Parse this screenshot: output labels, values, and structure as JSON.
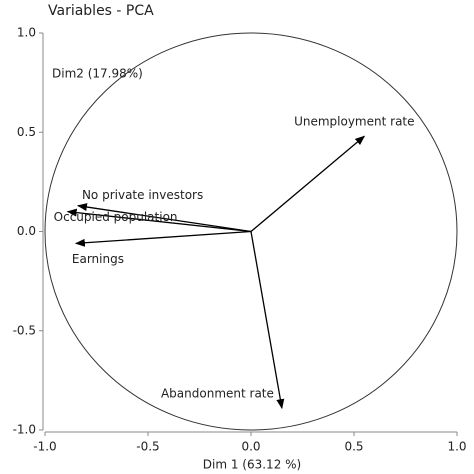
{
  "chart_data": {
    "type": "pca-variables",
    "title": "Variables - PCA",
    "xlabel": "Dim 1 (63.12 %)",
    "ylabel": "Dim2 (17.98%)",
    "color": "#000000",
    "variables": [
      {
        "name": "Unemployment rate",
        "x": 0.55,
        "y": 0.48
      },
      {
        "name": "No private investors",
        "x": -0.84,
        "y": 0.13
      },
      {
        "name": "Occupied population",
        "x": -0.89,
        "y": 0.1
      },
      {
        "name": "Earnings",
        "x": -0.85,
        "y": -0.06
      },
      {
        "name": "Abandonment rate",
        "x": 0.15,
        "y": -0.89
      }
    ],
    "xlim": [
      -1.0,
      1.0
    ],
    "ylim": [
      -1.0,
      1.0
    ],
    "xticks": [
      {
        "value": -1,
        "label": "-1.0"
      },
      -0.5,
      {
        "value": 0,
        "label": "0.0"
      },
      0.5,
      {
        "value": 1,
        "label": "1.0"
      }
    ],
    "yticks": [
      {
        "value": -1,
        "label": "-1.0"
      },
      -0.5,
      {
        "value": 0,
        "label": "0.0"
      },
      0.5,
      {
        "value": 1,
        "label": "1.0"
      }
    ]
  }
}
